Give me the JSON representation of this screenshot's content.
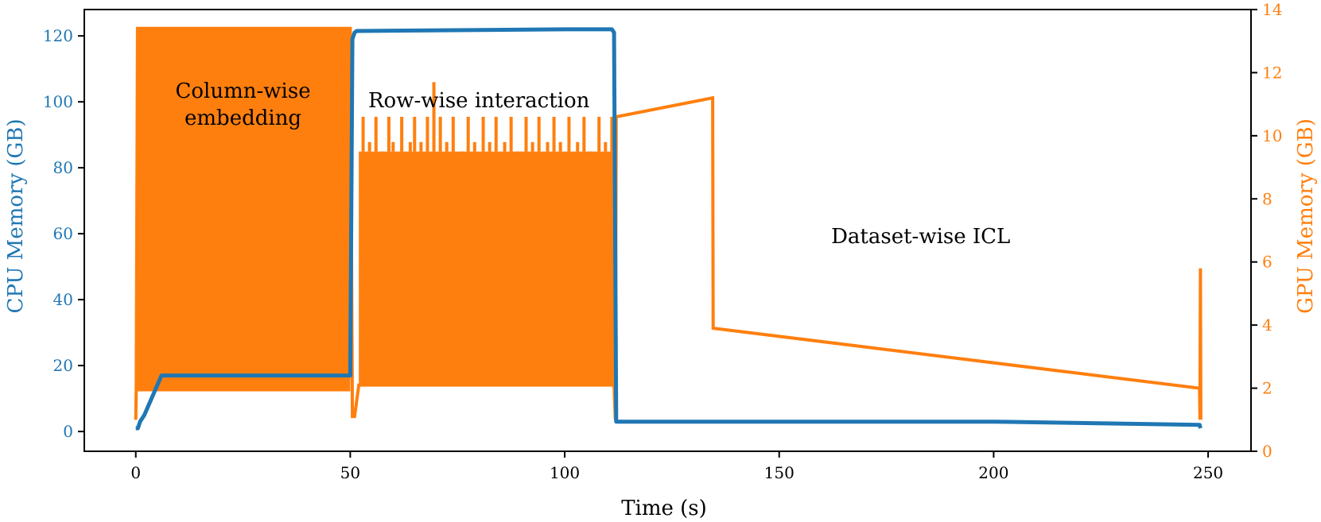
{
  "chart_data": {
    "type": "line",
    "xlabel": "Time (s)",
    "ylabel_left": "CPU Memory (GB)",
    "ylabel_right": "GPU Memory (GB)",
    "xlim": [
      -12,
      260
    ],
    "ylim_left": [
      -6,
      128
    ],
    "ylim_right": [
      0,
      14
    ],
    "x_ticks": [
      0,
      50,
      100,
      150,
      200,
      250
    ],
    "y_ticks_left": [
      0,
      20,
      40,
      60,
      80,
      100,
      120
    ],
    "y_ticks_right": [
      0,
      2,
      4,
      6,
      8,
      10,
      12,
      14
    ],
    "grid": false,
    "colors": {
      "cpu": "#1f77b4",
      "gpu": "#ff7f0e",
      "axis": "#000000"
    },
    "annotations": [
      {
        "lines": [
          "Column-wise",
          "embedding"
        ],
        "x": 25,
        "y_gpu": 11.2
      },
      {
        "lines": [
          "Row-wise interaction"
        ],
        "x": 80,
        "y_gpu": 10.9
      },
      {
        "lines": [
          "Dataset-wise ICL"
        ],
        "x": 183,
        "y_gpu": 6.6
      }
    ],
    "series": [
      {
        "name": "CPU Memory",
        "axis": "left",
        "x": [
          0,
          0.5,
          1,
          2,
          3,
          4,
          5,
          6,
          50,
          50.5,
          51,
          51.5,
          100,
          111,
          111.5,
          112,
          200,
          248,
          248.2
        ],
        "y": [
          1,
          1,
          3,
          5,
          8,
          11,
          14,
          17,
          17,
          119,
          121,
          121.5,
          122,
          122,
          121,
          3,
          3,
          2,
          1
        ]
      },
      {
        "name": "GPU Memory",
        "axis": "right",
        "envelopes": [
          {
            "x0": 0.4,
            "x1": 50,
            "low": 1.9,
            "high": 13.4
          },
          {
            "x0": 52,
            "x1": 111.5,
            "low": 2.1,
            "high": 9.5
          }
        ],
        "x": [
          0,
          0.1,
          0.4,
          50,
          50.5,
          51,
          52,
          111.5,
          111.8,
          112,
          134.5,
          134.6,
          248,
          248.1,
          248.2,
          248.3
        ],
        "y": [
          1,
          2,
          13.4,
          13.4,
          1.1,
          1.1,
          2.1,
          2.1,
          1.0,
          10.6,
          11.2,
          3.9,
          2.0,
          1.0,
          5.8,
          1.0
        ]
      }
    ],
    "gpu_spikes_row_phase": [
      {
        "x": 53,
        "y": 10.6
      },
      {
        "x": 54.5,
        "y": 9.8
      },
      {
        "x": 56,
        "y": 10.6
      },
      {
        "x": 57.5,
        "y": 9.1
      },
      {
        "x": 59,
        "y": 10.6
      },
      {
        "x": 60,
        "y": 9.8
      },
      {
        "x": 62,
        "y": 10.6
      },
      {
        "x": 64,
        "y": 9.8
      },
      {
        "x": 65,
        "y": 10.6
      },
      {
        "x": 66.5,
        "y": 9.8
      },
      {
        "x": 68,
        "y": 10.6
      },
      {
        "x": 69.5,
        "y": 11.7
      },
      {
        "x": 71,
        "y": 10.6
      },
      {
        "x": 72.5,
        "y": 9.8
      },
      {
        "x": 74,
        "y": 10.6
      },
      {
        "x": 76,
        "y": 9.1
      },
      {
        "x": 77.5,
        "y": 10.6
      },
      {
        "x": 79,
        "y": 9.8
      },
      {
        "x": 81,
        "y": 10.6
      },
      {
        "x": 82.5,
        "y": 9.8
      },
      {
        "x": 84,
        "y": 10.6
      },
      {
        "x": 86,
        "y": 9.8
      },
      {
        "x": 87.5,
        "y": 10.6
      },
      {
        "x": 89,
        "y": 9.1
      },
      {
        "x": 91,
        "y": 10.6
      },
      {
        "x": 92.5,
        "y": 9.8
      },
      {
        "x": 94,
        "y": 10.6
      },
      {
        "x": 96,
        "y": 9.8
      },
      {
        "x": 97.5,
        "y": 10.6
      },
      {
        "x": 99,
        "y": 9.8
      },
      {
        "x": 101,
        "y": 10.6
      },
      {
        "x": 103,
        "y": 9.8
      },
      {
        "x": 104.5,
        "y": 10.6
      },
      {
        "x": 106,
        "y": 9.1
      },
      {
        "x": 108,
        "y": 10.6
      },
      {
        "x": 109.5,
        "y": 9.8
      },
      {
        "x": 111,
        "y": 10.6
      }
    ]
  }
}
